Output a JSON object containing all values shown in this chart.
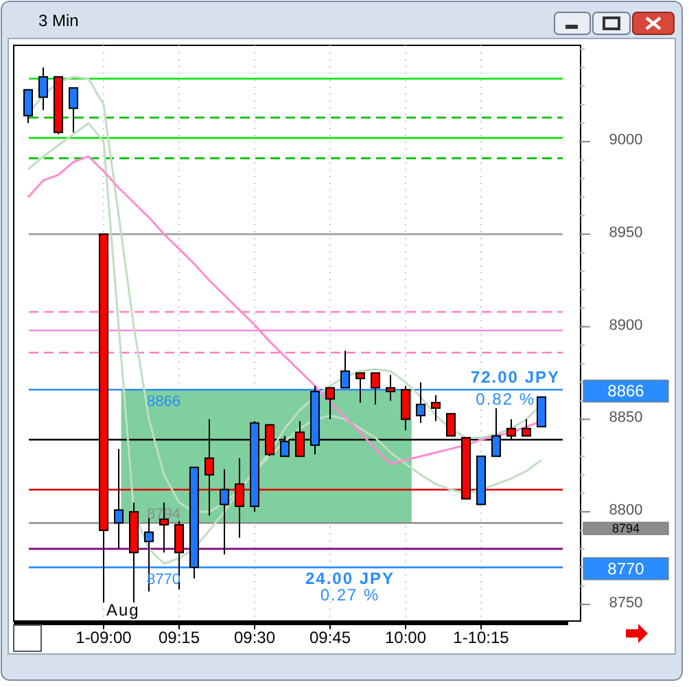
{
  "chart_data": {
    "type": "candlestick",
    "title": "3 Min",
    "categories": [
      null,
      null,
      null,
      null,
      null,
      "1-09:00",
      null,
      null,
      null,
      null,
      "09:15",
      null,
      null,
      null,
      null,
      "09:30",
      null,
      null,
      null,
      null,
      "09:45",
      null,
      null,
      null,
      null,
      "10:00",
      null,
      null,
      null,
      null,
      "1-10:15",
      null,
      null,
      null,
      null,
      null,
      null
    ],
    "ohlc": [
      [
        9014,
        9028,
        9010,
        9028
      ],
      [
        9024,
        9040,
        9017,
        9035
      ],
      [
        9035,
        9035,
        9004,
        9005
      ],
      [
        9018,
        9029,
        9005,
        9029
      ],
      null,
      [
        8950,
        8950,
        8751,
        8790
      ],
      [
        8794,
        8834,
        8780,
        8801
      ],
      [
        8800,
        8805,
        8751,
        8778
      ],
      [
        8784,
        8797,
        8757,
        8789
      ],
      [
        8796,
        8805,
        8778,
        8793
      ],
      [
        8793,
        8795,
        8758,
        8778
      ],
      [
        8770,
        8824,
        8764,
        8824
      ],
      [
        8829,
        8850,
        8798,
        8820
      ],
      [
        8804,
        8823,
        8777,
        8812
      ],
      [
        8815,
        8829,
        8786,
        8803
      ],
      [
        8803,
        8849,
        8800,
        8848
      ],
      [
        8847,
        8847,
        8830,
        8831
      ],
      [
        8830,
        8841,
        8830,
        8838
      ],
      [
        8843,
        8849,
        8830,
        8830
      ],
      [
        8836,
        8868,
        8831,
        8865
      ],
      [
        8867,
        8867,
        8850,
        8861
      ],
      [
        8867,
        8887,
        8867,
        8876
      ],
      [
        8875,
        8875,
        8859,
        8872
      ],
      [
        8875,
        8875,
        8858,
        8867
      ],
      [
        8867,
        8874,
        8860,
        8865
      ],
      [
        8866,
        8868,
        8844,
        8850
      ],
      [
        8852,
        8870,
        8848,
        8858
      ],
      [
        8859,
        8863,
        8849,
        8856
      ],
      [
        8853,
        8853,
        8841,
        8841
      ],
      [
        8840,
        8840,
        8807,
        8807
      ],
      [
        8804,
        8830,
        8804,
        8830
      ],
      [
        8830,
        8856,
        8830,
        8841
      ],
      [
        8845,
        8850,
        8839,
        8841
      ],
      [
        8845,
        8850,
        8841,
        8841
      ],
      [
        8846,
        8862,
        8846,
        8862
      ],
      null,
      null
    ],
    "colors": [
      "#1e78ff",
      "#1e78ff",
      "#ff0000",
      "#1e78ff",
      null,
      "#ff0000",
      "#1e78ff",
      "#ff0000",
      "#1e78ff",
      "#ff0000",
      "#ff0000",
      "#1e78ff",
      "#ff0000",
      "#1e78ff",
      "#ff0000",
      "#1e78ff",
      "#ff0000",
      "#1e78ff",
      "#ff0000",
      "#1e78ff",
      "#ff0000",
      "#1e78ff",
      "#ff0000",
      "#ff0000",
      "#ff0000",
      "#ff0000",
      "#1e78ff",
      "#ff0000",
      "#ff0000",
      "#ff0000",
      "#1e78ff",
      "#1e78ff",
      "#ff0000",
      "#ff0000",
      "#1e78ff",
      null,
      null
    ],
    "series": [
      {
        "type": "line",
        "color": "#c0dfc0",
        "values": [
          9015,
          9025,
          9032,
          9035,
          9034,
          9020,
          8960,
          8900,
          8850,
          8820,
          8805,
          8800,
          8800,
          8805,
          8812,
          8822,
          8832,
          8845,
          8855,
          8862,
          8868,
          8873,
          8876,
          8877,
          8876,
          8870,
          8862,
          8852,
          8845,
          8840,
          8840,
          8842,
          8845,
          8850,
          8858,
          null,
          null
        ]
      },
      {
        "type": "line",
        "color": "#c0dfc0",
        "values": [
          8985,
          8992,
          8998,
          9004,
          9010,
          9000,
          8900,
          8800,
          8780,
          8772,
          8775,
          8780,
          8790,
          8800,
          8812,
          8822,
          8830,
          8838,
          8845,
          8850,
          8852,
          8850,
          8845,
          8840,
          8832,
          8826,
          8820,
          8815,
          8812,
          8810,
          8812,
          8815,
          8818,
          8822,
          8828,
          null,
          null
        ]
      },
      {
        "type": "line",
        "color": "#ff8ccf",
        "values": [
          8970,
          8979,
          8982,
          8989,
          8992,
          8984,
          8975,
          8967,
          8959,
          8950,
          8942,
          8934,
          8925,
          8917,
          8909,
          8901,
          8892,
          8884,
          8876,
          8868,
          8859,
          8851,
          8843,
          8834,
          8826,
          8828,
          8830,
          8832,
          8834,
          8836,
          8839,
          8841,
          8843,
          8846,
          8849,
          null,
          null
        ]
      }
    ],
    "ylim": [
      8741,
      9052
    ],
    "yticks": [
      8750,
      8800,
      8850,
      8900,
      8950,
      9000
    ],
    "grid": "x",
    "bands": [
      {
        "axis": "y",
        "from": 8794,
        "to": 8866,
        "color": "#7fcf9f"
      }
    ],
    "ref_lines": [
      {
        "axis": "y",
        "value": 9034,
        "color": "#00e000",
        "line_style": "solid"
      },
      {
        "axis": "y",
        "value": 9013,
        "color": "#00c000",
        "line_style": "dashed"
      },
      {
        "axis": "y",
        "value": 9002,
        "color": "#00e000",
        "line_style": "solid"
      },
      {
        "axis": "y",
        "value": 8991,
        "color": "#00c000",
        "line_style": "dashed"
      },
      {
        "axis": "y",
        "value": 8950,
        "color": "#a0a0a0",
        "line_style": "solid"
      },
      {
        "axis": "y",
        "value": 8908,
        "color": "#ff80c0",
        "line_style": "dashed"
      },
      {
        "axis": "y",
        "value": 8898,
        "color": "#ff88dd",
        "line_style": "solid"
      },
      {
        "axis": "y",
        "value": 8886,
        "color": "#ff80c0",
        "line_style": "dashed"
      },
      {
        "axis": "y",
        "value": 8866,
        "color": "#2a8cff",
        "line_style": "solid",
        "label": "8866"
      },
      {
        "axis": "y",
        "value": 8839,
        "color": "#000000",
        "line_style": "solid"
      },
      {
        "axis": "y",
        "value": 8812,
        "color": "#e00000",
        "line_style": "solid"
      },
      {
        "axis": "y",
        "value": 8794,
        "color": "#8c8c8c",
        "line_style": "solid",
        "label": "8794"
      },
      {
        "axis": "y",
        "value": 8780,
        "color": "#800080",
        "line_style": "solid"
      },
      {
        "axis": "y",
        "value": 8770,
        "color": "#2a8cff",
        "line_style": "solid",
        "label": "8770"
      }
    ],
    "annotations": [
      "Aug",
      {
        "text": "24.00 JPY",
        "y": 8770
      },
      {
        "text": "0.27 %",
        "y": 8770
      },
      {
        "text": "72.00 JPY",
        "y": 8866
      },
      {
        "text": "0.82 %",
        "y": 8866
      }
    ]
  }
}
